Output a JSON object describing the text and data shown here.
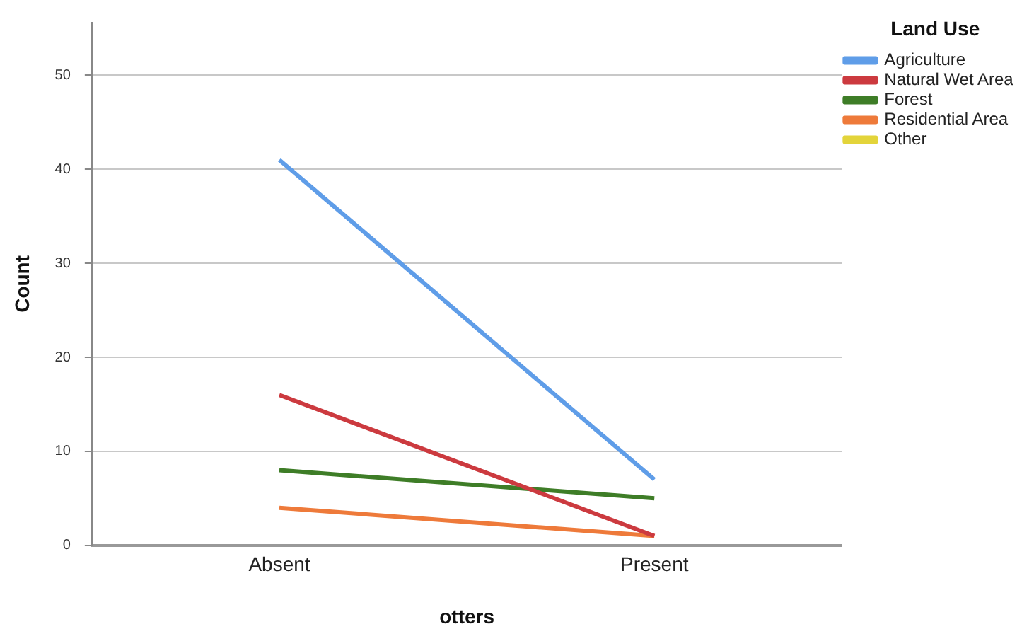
{
  "chart_data": {
    "type": "line",
    "xlabel": "otters",
    "ylabel": "Count",
    "legend_title": "Land Use",
    "categories": [
      "Absent",
      "Present"
    ],
    "series": [
      {
        "name": "Agriculture",
        "color": "#5f9de8",
        "values": [
          41,
          7
        ]
      },
      {
        "name": "Natural Wet Area",
        "color": "#cc3a3f",
        "values": [
          16,
          1
        ]
      },
      {
        "name": "Forest",
        "color": "#3e7d27",
        "values": [
          8,
          5
        ]
      },
      {
        "name": "Residential Area",
        "color": "#ee7a3a",
        "values": [
          4,
          1
        ]
      },
      {
        "name": "Other",
        "color": "#e3d43a",
        "values": [
          null,
          null
        ]
      }
    ],
    "ylim": [
      0,
      55.6
    ],
    "yticks": [
      0,
      10,
      20,
      30,
      40,
      50
    ],
    "grid": "y",
    "legend": "top right",
    "marker": "none",
    "line_style": "solid"
  }
}
